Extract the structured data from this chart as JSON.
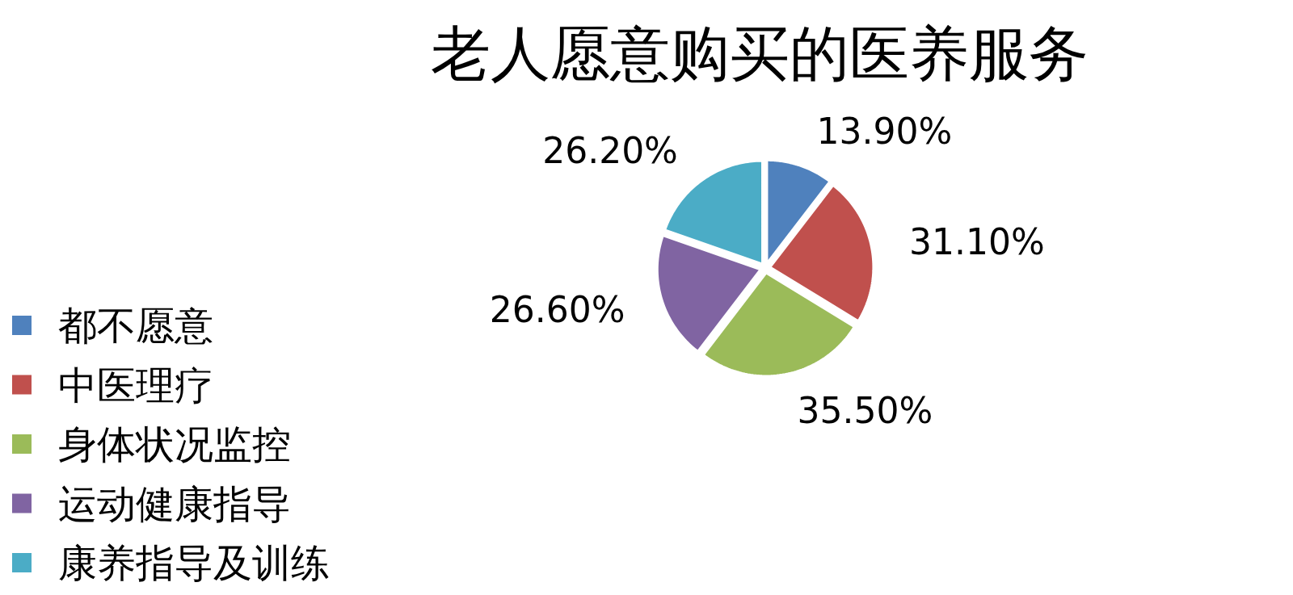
{
  "chart_data": {
    "type": "pie",
    "title": "老人愿意购买的医养服务",
    "categories": [
      "都不愿意",
      "中医理疗",
      "身体状况监控",
      "运动健康指导",
      "康养指导及训练"
    ],
    "values": [
      13.9,
      31.1,
      35.5,
      26.6,
      26.2
    ],
    "value_labels": [
      "13.90%",
      "31.10%",
      "35.50%",
      "26.60%",
      "26.20%"
    ],
    "colors": [
      "#4f81bd",
      "#c0504d",
      "#9bbb59",
      "#8064a2",
      "#4bacc6"
    ],
    "legend": "left"
  }
}
